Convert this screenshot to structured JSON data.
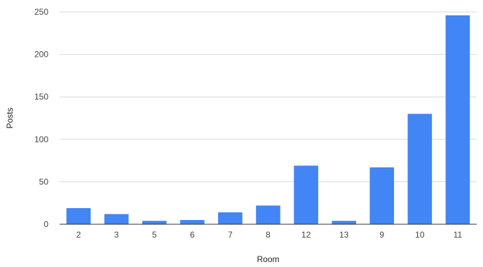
{
  "chart_data": {
    "type": "bar",
    "title": "",
    "xlabel": "Room",
    "ylabel": "Posts",
    "categories": [
      "2",
      "3",
      "5",
      "6",
      "7",
      "8",
      "12",
      "13",
      "9",
      "10",
      "11"
    ],
    "values": [
      19,
      12,
      4,
      5,
      14,
      22,
      69,
      4,
      67,
      130,
      246
    ],
    "ylim": [
      0,
      250
    ],
    "yticks": [
      0,
      50,
      100,
      150,
      200,
      250
    ],
    "grid": true,
    "legend": "none",
    "bar_color": "#4285f4"
  }
}
